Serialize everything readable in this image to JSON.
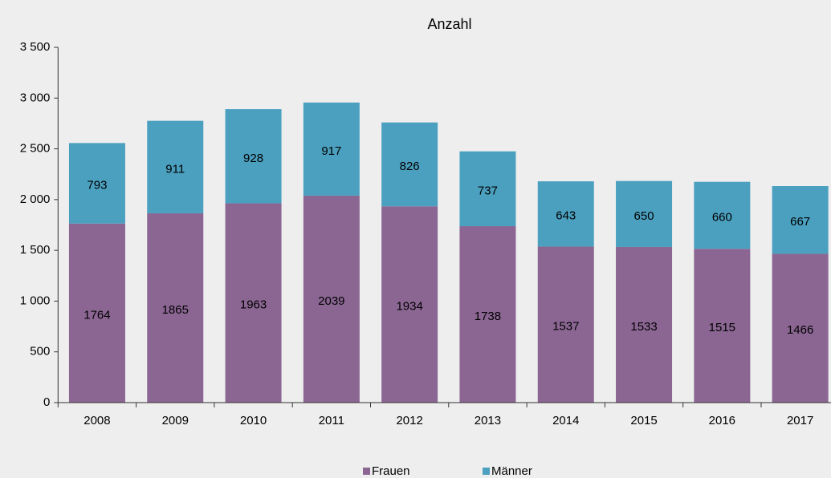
{
  "chart_data": {
    "type": "stacked_bar",
    "title": "Anzahl",
    "categories": [
      "2008",
      "2009",
      "2010",
      "2011",
      "2012",
      "2013",
      "2014",
      "2015",
      "2016",
      "2017"
    ],
    "series": [
      {
        "name": "Frauen",
        "color": "#8b6693",
        "values": [
          1764,
          1865,
          1963,
          2039,
          1934,
          1738,
          1537,
          1533,
          1515,
          1466
        ]
      },
      {
        "name": "Männer",
        "color": "#4ba0c0",
        "values": [
          793,
          911,
          928,
          917,
          826,
          737,
          643,
          650,
          660,
          667
        ]
      }
    ],
    "ylim": [
      0,
      3500
    ],
    "yticks": [
      0,
      500,
      {
        "value": 1000,
        "label": "1 000"
      },
      {
        "value": 1500,
        "label": "1 500"
      },
      {
        "value": 2000,
        "label": "2 000"
      },
      {
        "value": 2500,
        "label": "2 500"
      },
      {
        "value": 3000,
        "label": "3 000"
      },
      {
        "value": 3500,
        "label": "3 500"
      }
    ],
    "grid": false,
    "legend": "bottom"
  }
}
